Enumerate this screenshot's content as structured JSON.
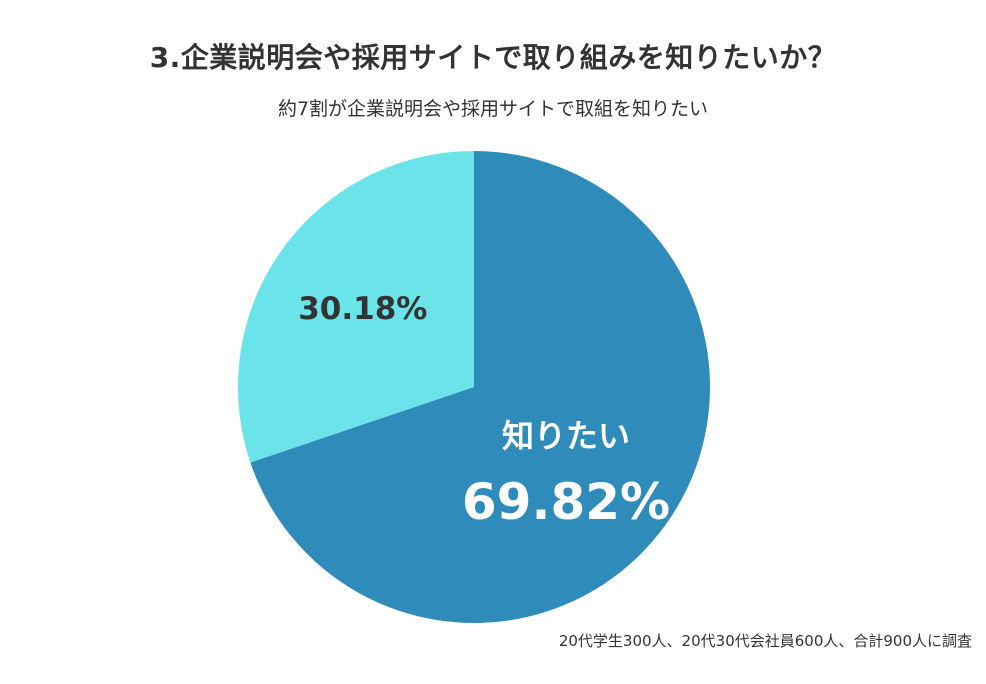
{
  "title": "3.企業説明会や採用サイトで取り組みを知りたいか？",
  "subtitle": "約7割が企業説明会や採用サイトで取組を知りたい",
  "note": "20代学生300人、20代30代会社員600人、合計900人に調査",
  "chart_data": {
    "type": "pie",
    "start_angle_deg": 0,
    "direction": "clockwise",
    "slices": [
      {
        "category": "知りたい",
        "value": 69.82,
        "label": "69.82%",
        "color": "#2e8bba",
        "text_color": "#ffffff"
      },
      {
        "category": "",
        "value": 30.18,
        "label": "30.18%",
        "color": "#6be4e9",
        "text_color": "#333333"
      }
    ]
  }
}
